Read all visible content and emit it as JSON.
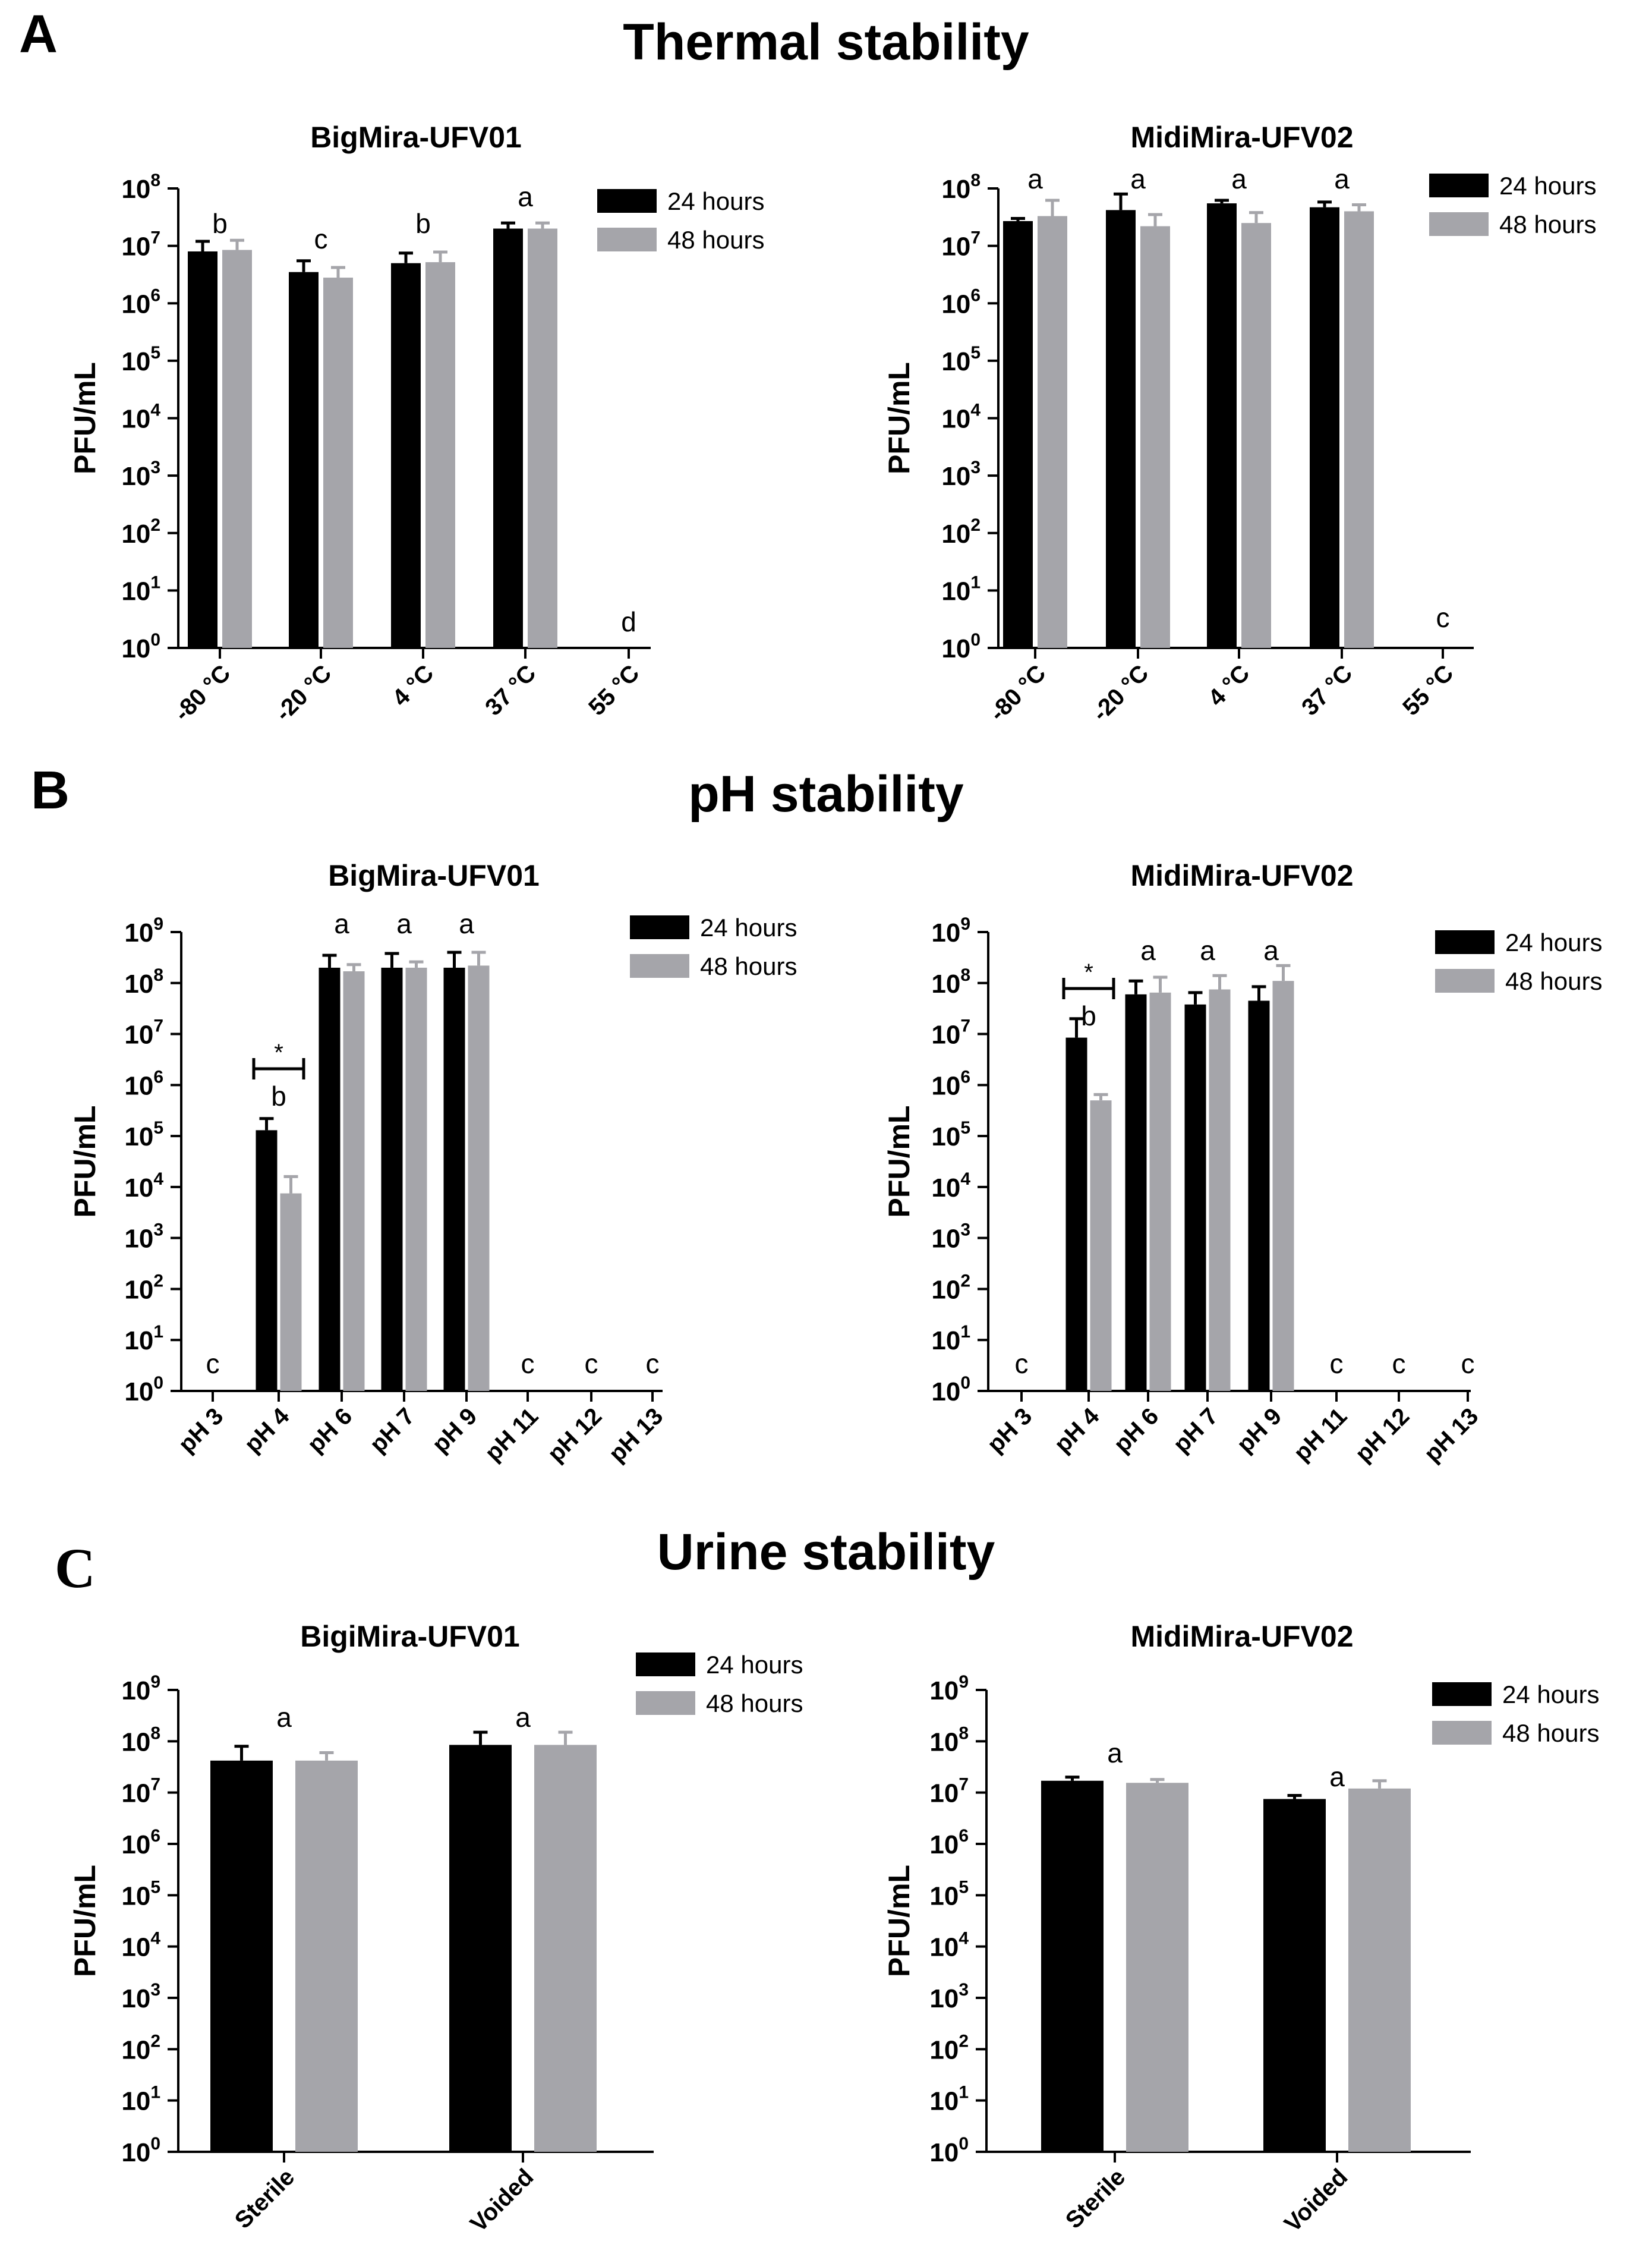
{
  "figure": {
    "panels": [
      {
        "letter": "A",
        "title": "Thermal stability"
      },
      {
        "letter": "B",
        "title": "pH stability"
      },
      {
        "letter": "C",
        "title": "Urine stability"
      }
    ]
  },
  "chart_data": [
    {
      "id": "A1",
      "type": "bar",
      "title": "BigMira-UFV01",
      "ylabel": "PFU/mL",
      "yscale": "log10",
      "ylim_exp": [
        0,
        8
      ],
      "tick_base": "10",
      "categories": [
        "-80 °C",
        "-20 °C",
        "4 °C",
        "37 °C",
        "55 °C"
      ],
      "series": [
        {
          "name": "24 hours",
          "color": "#000000",
          "values": [
            8000000,
            3500000,
            5000000,
            20000000,
            null
          ],
          "errors": [
            12000000,
            5500000,
            7500000,
            25000000,
            null
          ]
        },
        {
          "name": "48 hours",
          "color": "#a5a5aa",
          "values": [
            8500000,
            2800000,
            5200000,
            20000000,
            null
          ],
          "errors": [
            12500000,
            4200000,
            7800000,
            25000000,
            null
          ]
        }
      ],
      "letters": [
        "b",
        "c",
        "b",
        "a",
        "d"
      ],
      "legend": [
        "24 hours",
        "48 hours"
      ]
    },
    {
      "id": "A2",
      "type": "bar",
      "title": "MidiMira-UFV02",
      "ylabel": "PFU/mL",
      "yscale": "log10",
      "ylim_exp": [
        0,
        8
      ],
      "tick_base": "10",
      "categories": [
        "-80 °C",
        "-20 °C",
        "4 °C",
        "37 °C",
        "55 °C"
      ],
      "series": [
        {
          "name": "24 hours",
          "color": "#000000",
          "values": [
            27000000,
            42000000,
            55000000,
            47000000,
            null
          ],
          "errors": [
            30000000,
            80000000,
            62000000,
            58000000,
            null
          ]
        },
        {
          "name": "48 hours",
          "color": "#a5a5aa",
          "values": [
            33000000,
            22000000,
            25000000,
            40000000,
            null
          ],
          "errors": [
            62000000,
            35000000,
            38000000,
            52000000,
            null
          ]
        }
      ],
      "letters": [
        "a",
        "a",
        "a",
        "a",
        "c"
      ],
      "legend": [
        "24 hours",
        "48 hours"
      ]
    },
    {
      "id": "B1",
      "type": "bar",
      "title": "BigMira-UFV01",
      "ylabel": "PFU/mL",
      "yscale": "log10",
      "ylim_exp": [
        0,
        9
      ],
      "tick_base": "10",
      "categories": [
        "pH 3",
        "pH 4",
        "pH 6",
        "pH 7",
        "pH 9",
        "pH 11",
        "pH 12",
        "pH 13"
      ],
      "series": [
        {
          "name": "24 hours",
          "color": "#000000",
          "values": [
            null,
            130000,
            200000000,
            200000000,
            200000000,
            null,
            null,
            null
          ],
          "errors": [
            null,
            220000,
            350000000,
            380000000,
            400000000,
            null,
            null,
            null
          ]
        },
        {
          "name": "48 hours",
          "color": "#a5a5aa",
          "values": [
            null,
            7500,
            170000000,
            200000000,
            220000000,
            null,
            null,
            null
          ],
          "errors": [
            null,
            16000,
            230000000,
            260000000,
            400000000,
            null,
            null,
            null
          ]
        }
      ],
      "letters": [
        "c",
        "b",
        "a",
        "a",
        "a",
        "c",
        "c",
        "c"
      ],
      "significance": {
        "category_index": 1,
        "label": "*"
      },
      "legend": [
        "24 hours",
        "48 hours"
      ]
    },
    {
      "id": "B2",
      "type": "bar",
      "title": "MidiMira-UFV02",
      "ylabel": "PFU/mL",
      "yscale": "log10",
      "ylim_exp": [
        0,
        9
      ],
      "tick_base": "10",
      "categories": [
        "pH 3",
        "pH 4",
        "pH 6",
        "pH 7",
        "pH 9",
        "pH 11",
        "pH 12",
        "pH 13"
      ],
      "series": [
        {
          "name": "24 hours",
          "color": "#000000",
          "values": [
            null,
            8500000,
            60000000,
            38000000,
            45000000,
            null,
            null,
            null
          ],
          "errors": [
            null,
            20000000,
            110000000,
            65000000,
            85000000,
            null,
            null,
            null
          ]
        },
        {
          "name": "48 hours",
          "color": "#a5a5aa",
          "values": [
            null,
            500000,
            65000000,
            75000000,
            110000000,
            null,
            null,
            null
          ],
          "errors": [
            null,
            650000,
            130000000,
            140000000,
            220000000,
            null,
            null,
            null
          ]
        }
      ],
      "letters": [
        "c",
        "b",
        "a",
        "a",
        "a",
        "c",
        "c",
        "c"
      ],
      "significance": {
        "category_index": 1,
        "label": "*"
      },
      "legend": [
        "24 hours",
        "48 hours"
      ]
    },
    {
      "id": "C1",
      "type": "bar",
      "title": "BigiMira-UFV01",
      "ylabel": "PFU/mL",
      "yscale": "log10",
      "ylim_exp": [
        0,
        9
      ],
      "tick_base": "10",
      "categories": [
        "Sterile",
        "Voided"
      ],
      "series": [
        {
          "name": "24 hours",
          "color": "#000000",
          "values": [
            42000000,
            85000000
          ],
          "errors": [
            80000000,
            150000000
          ]
        },
        {
          "name": "48 hours",
          "color": "#a5a5aa",
          "values": [
            42000000,
            85000000
          ],
          "errors": [
            60000000,
            150000000
          ]
        }
      ],
      "letters": [
        "a",
        "a"
      ],
      "legend": [
        "24 hours",
        "48 hours"
      ]
    },
    {
      "id": "C2",
      "type": "bar",
      "title": "MidiMira-UFV02",
      "ylabel": "PFU/mL",
      "yscale": "log10",
      "ylim_exp": [
        0,
        9
      ],
      "tick_base": "10",
      "categories": [
        "Sterile",
        "Voided"
      ],
      "series": [
        {
          "name": "24 hours",
          "color": "#000000",
          "values": [
            17000000,
            7500000
          ],
          "errors": [
            20000000,
            8800000
          ]
        },
        {
          "name": "48 hours",
          "color": "#a5a5aa",
          "values": [
            15500000,
            12000000
          ],
          "errors": [
            18000000,
            17000000
          ]
        }
      ],
      "letters": [
        "a",
        "a"
      ],
      "legend": [
        "24 hours",
        "48 hours"
      ]
    }
  ]
}
